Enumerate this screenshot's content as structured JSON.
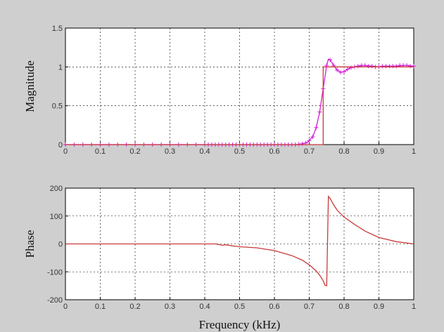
{
  "chart_data": [
    {
      "type": "line",
      "ylabel": "Magnitude",
      "xlim": [
        0,
        1
      ],
      "ylim": [
        0,
        1.5
      ],
      "x_ticks": [
        "0",
        "0.1",
        "0.2",
        "0.3",
        "0.4",
        "0.5",
        "0.6",
        "0.7",
        "0.8",
        "0.9",
        "1"
      ],
      "y_ticks": [
        "0",
        "0.5",
        "1",
        "1.5"
      ],
      "grid": true,
      "series": [
        {
          "style": "line",
          "color": "#d21fd6",
          "x": [
            0,
            0.66,
            0.68,
            0.695,
            0.71,
            0.72,
            0.73,
            0.74,
            0.75,
            0.755,
            0.76,
            0.77,
            0.78,
            0.79,
            0.8,
            0.81,
            0.82,
            0.84,
            0.86,
            0.88,
            0.9,
            0.92,
            0.95,
            0.98,
            1.0
          ],
          "y": [
            0,
            0,
            0.01,
            0.03,
            0.1,
            0.22,
            0.42,
            0.72,
            1.02,
            1.1,
            1.09,
            1.02,
            0.96,
            0.93,
            0.94,
            0.97,
            0.99,
            1.01,
            1.02,
            1.01,
            1.0,
            1.01,
            1.01,
            1.02,
            1.01
          ]
        },
        {
          "style": "markers",
          "marker": "plus",
          "color": "#d21fd6",
          "x": [
            0,
            0.025,
            0.05,
            0.075,
            0.1,
            0.125,
            0.15,
            0.175,
            0.2,
            0.225,
            0.25,
            0.275,
            0.3,
            0.325,
            0.35,
            0.375,
            0.4,
            0.41,
            0.42,
            0.43,
            0.44,
            0.45,
            0.46,
            0.47,
            0.48,
            0.49,
            0.5,
            0.51,
            0.52,
            0.53,
            0.54,
            0.55,
            0.56,
            0.57,
            0.58,
            0.59,
            0.6,
            0.61,
            0.62,
            0.63,
            0.64,
            0.65,
            0.66,
            0.67,
            0.68,
            0.69,
            0.7,
            0.71,
            0.72,
            0.73,
            0.74,
            0.75,
            0.76,
            0.77,
            0.78,
            0.79,
            0.8,
            0.81,
            0.82,
            0.83,
            0.84,
            0.85,
            0.86,
            0.87,
            0.88,
            0.89,
            0.9,
            0.91,
            0.92,
            0.93,
            0.94,
            0.95,
            0.96,
            0.97,
            0.98,
            0.99,
            1.0
          ],
          "y": [
            0,
            0,
            0,
            0,
            0,
            0,
            0,
            0,
            0,
            0,
            0,
            0,
            0,
            0,
            0,
            0,
            0,
            0,
            0,
            0,
            0,
            0,
            0,
            0,
            0,
            0,
            0,
            0,
            0,
            0,
            0,
            0,
            0,
            0,
            0,
            0,
            0,
            0,
            0,
            0,
            0,
            0,
            0,
            0.005,
            0.01,
            0.02,
            0.05,
            0.1,
            0.22,
            0.42,
            0.72,
            1.02,
            1.09,
            1.02,
            0.96,
            0.93,
            0.94,
            0.97,
            0.99,
            1.0,
            1.01,
            1.02,
            1.02,
            1.01,
            1.01,
            1.0,
            1.0,
            1.01,
            1.01,
            1.01,
            1.01,
            1.01,
            1.02,
            1.02,
            1.02,
            1.01,
            1.01
          ]
        },
        {
          "style": "line",
          "color": "#c83a3a",
          "x": [
            0,
            0.74,
            0.74,
            0.75,
            0.75,
            1.0
          ],
          "y": [
            0,
            0,
            1,
            1,
            1,
            1
          ]
        }
      ]
    },
    {
      "type": "line",
      "ylabel": "Phase",
      "xlabel": "Frequency (kHz)",
      "xlim": [
        0,
        1
      ],
      "ylim": [
        -200,
        200
      ],
      "x_ticks": [
        "0",
        "0.1",
        "0.2",
        "0.3",
        "0.4",
        "0.5",
        "0.6",
        "0.7",
        "0.8",
        "0.9",
        "1"
      ],
      "y_ticks": [
        "-200",
        "-100",
        "0",
        "100",
        "200"
      ],
      "grid": true,
      "series": [
        {
          "style": "line",
          "color": "#c83a3a",
          "x": [
            0,
            0.43,
            0.44,
            0.45,
            0.46,
            0.48,
            0.5,
            0.55,
            0.6,
            0.65,
            0.68,
            0.7,
            0.72,
            0.73,
            0.74,
            0.745,
            0.75,
            0.755,
            0.76,
            0.77,
            0.78,
            0.8,
            0.83,
            0.86,
            0.9,
            0.95,
            1.0
          ],
          "y": [
            0,
            0,
            -2,
            -5,
            -3,
            -7,
            -10,
            -14,
            -24,
            -42,
            -58,
            -75,
            -97,
            -112,
            -132,
            -148,
            -150,
            170,
            163,
            140,
            121,
            96,
            70,
            46,
            23,
            8,
            0
          ]
        }
      ]
    }
  ]
}
